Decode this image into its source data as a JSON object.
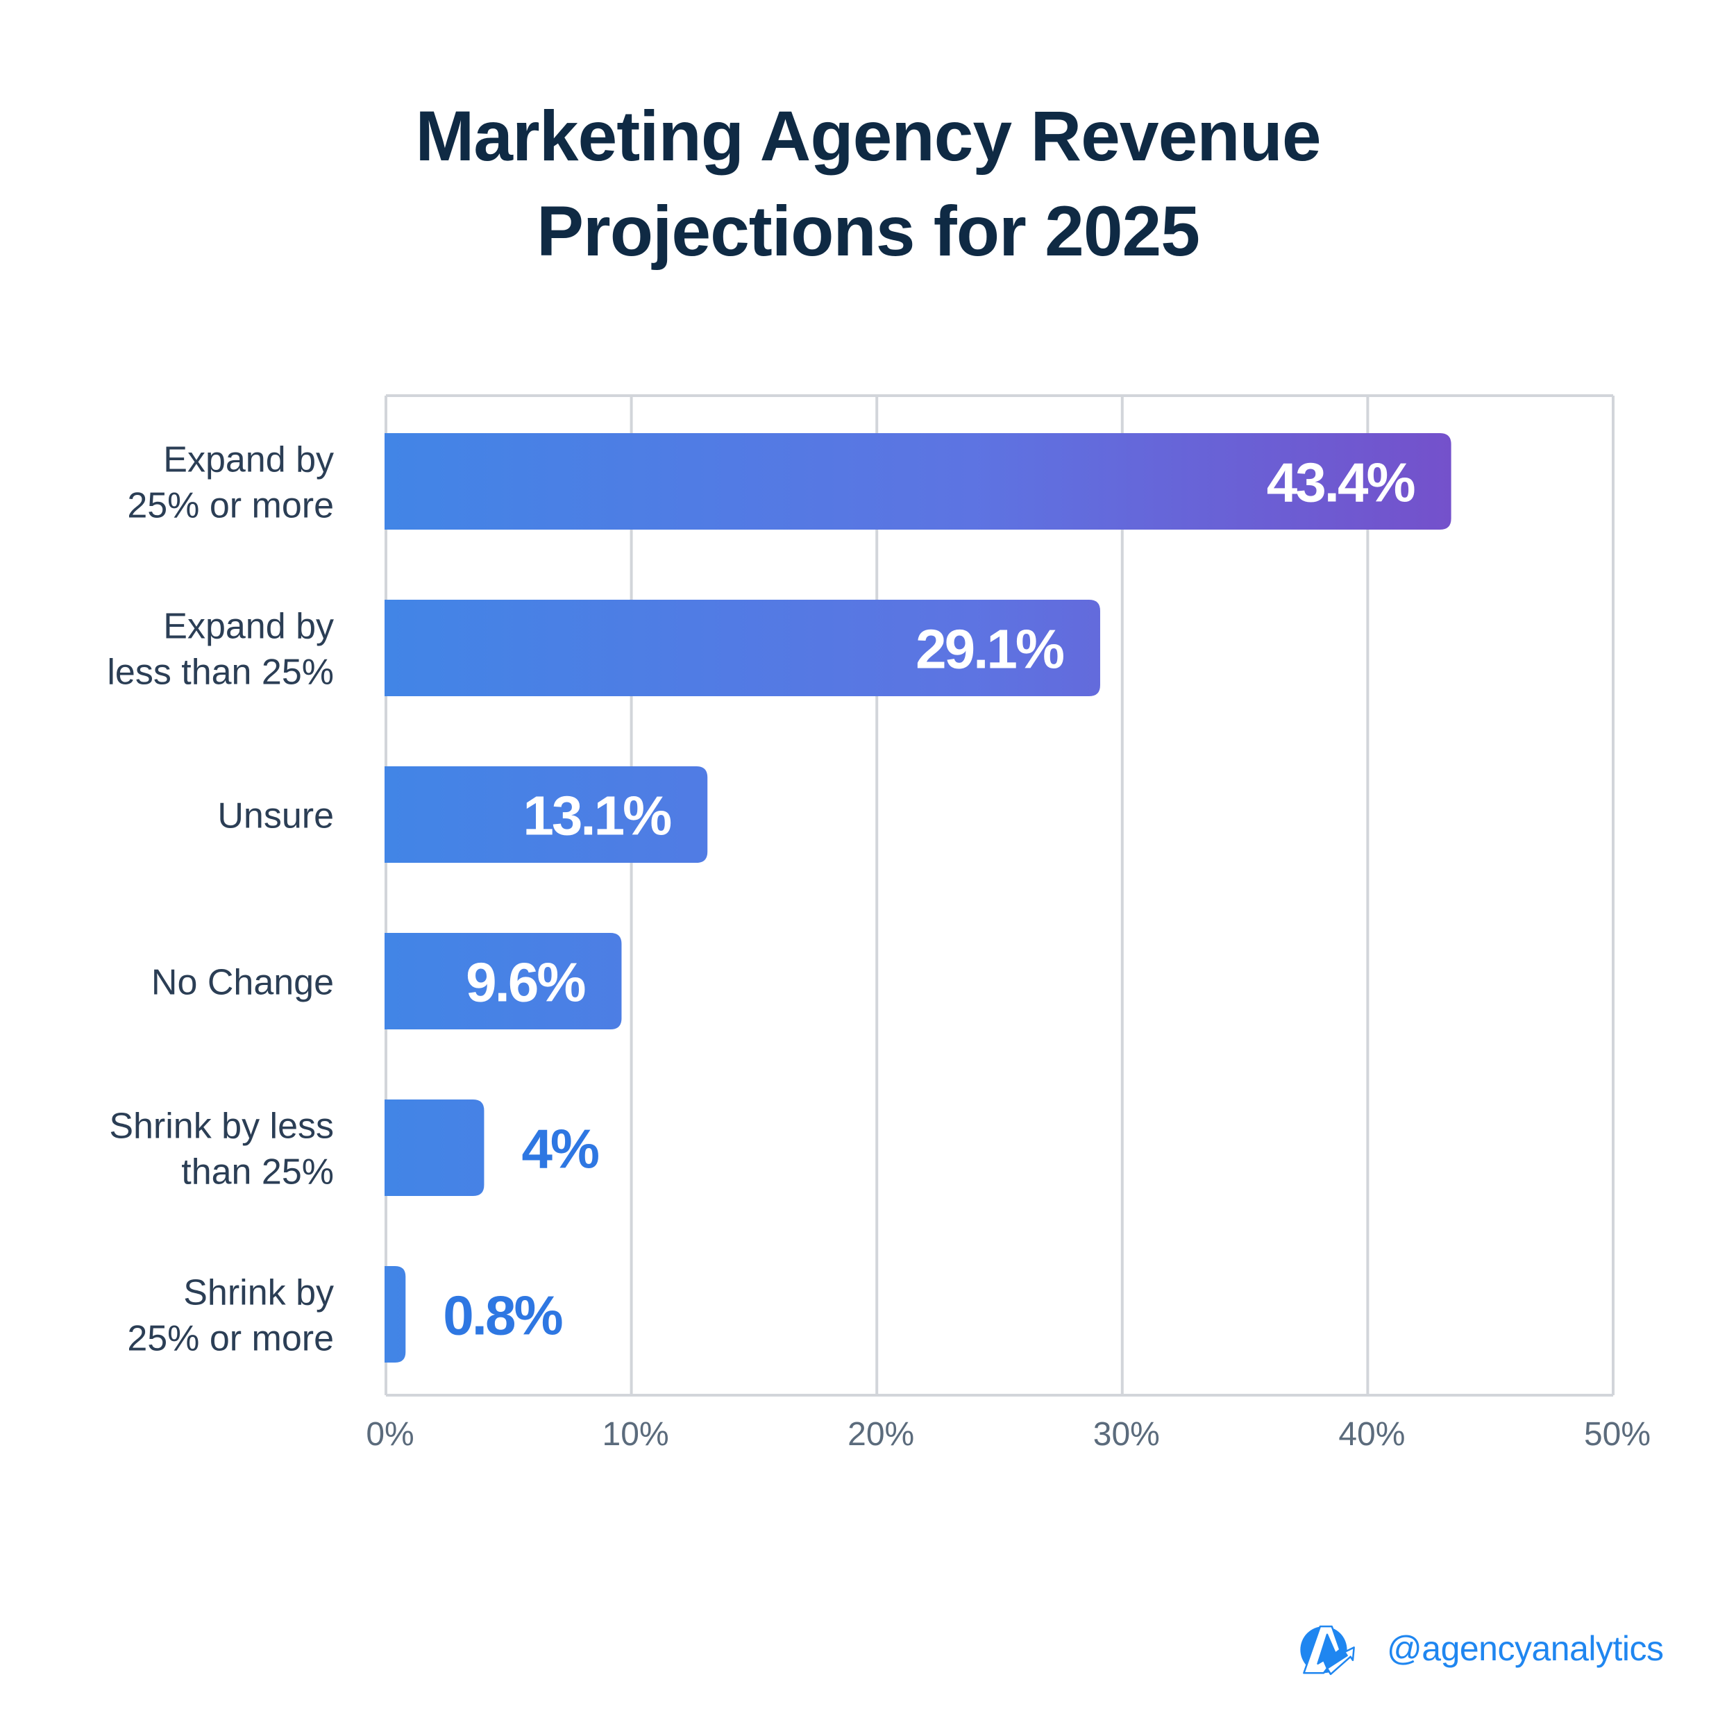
{
  "chart_data": {
    "type": "bar",
    "orientation": "horizontal",
    "title": "Marketing Agency Revenue Projections for 2025",
    "title_lines": [
      "Marketing Agency Revenue",
      "Projections for 2025"
    ],
    "categories": [
      [
        "Expand by",
        "25% or more"
      ],
      [
        "Expand by",
        "less than 25%"
      ],
      [
        "Unsure"
      ],
      [
        "No Change"
      ],
      [
        "Shrink by less",
        "than 25%"
      ],
      [
        "Shrink by",
        "25% or more"
      ]
    ],
    "category_names": [
      "Expand by 25% or more",
      "Expand by less than 25%",
      "Unsure",
      "No Change",
      "Shrink by less than 25%",
      "Shrink by 25% or more"
    ],
    "values": [
      43.4,
      29.1,
      13.1,
      9.6,
      4,
      0.8
    ],
    "value_labels": [
      "43.4%",
      "29.1%",
      "13.1%",
      "9.6%",
      "4%",
      "0.8%"
    ],
    "xlabel": "",
    "ylabel": "",
    "xlim": [
      0,
      50
    ],
    "xticks": [
      0,
      10,
      20,
      30,
      40,
      50
    ],
    "xtick_labels": [
      "0%",
      "10%",
      "20%",
      "30%",
      "40%",
      "50%"
    ],
    "grid": "vertical",
    "legend": "none",
    "colors": {
      "bar_gradient_start": "#4285e6",
      "bar_gradient_end": "#7451cb",
      "label_inside": "#ffffff",
      "label_outside": "#2e77e2",
      "grid": "#d2d5da",
      "category_text": "#2b3e55",
      "tick_text": "#5b6b7c",
      "title": "#0f2a44"
    }
  },
  "brand": {
    "logo_icon": "agencyanalytics-logo-icon",
    "handle": "@agencyanalytics",
    "color": "#1f86f0"
  }
}
